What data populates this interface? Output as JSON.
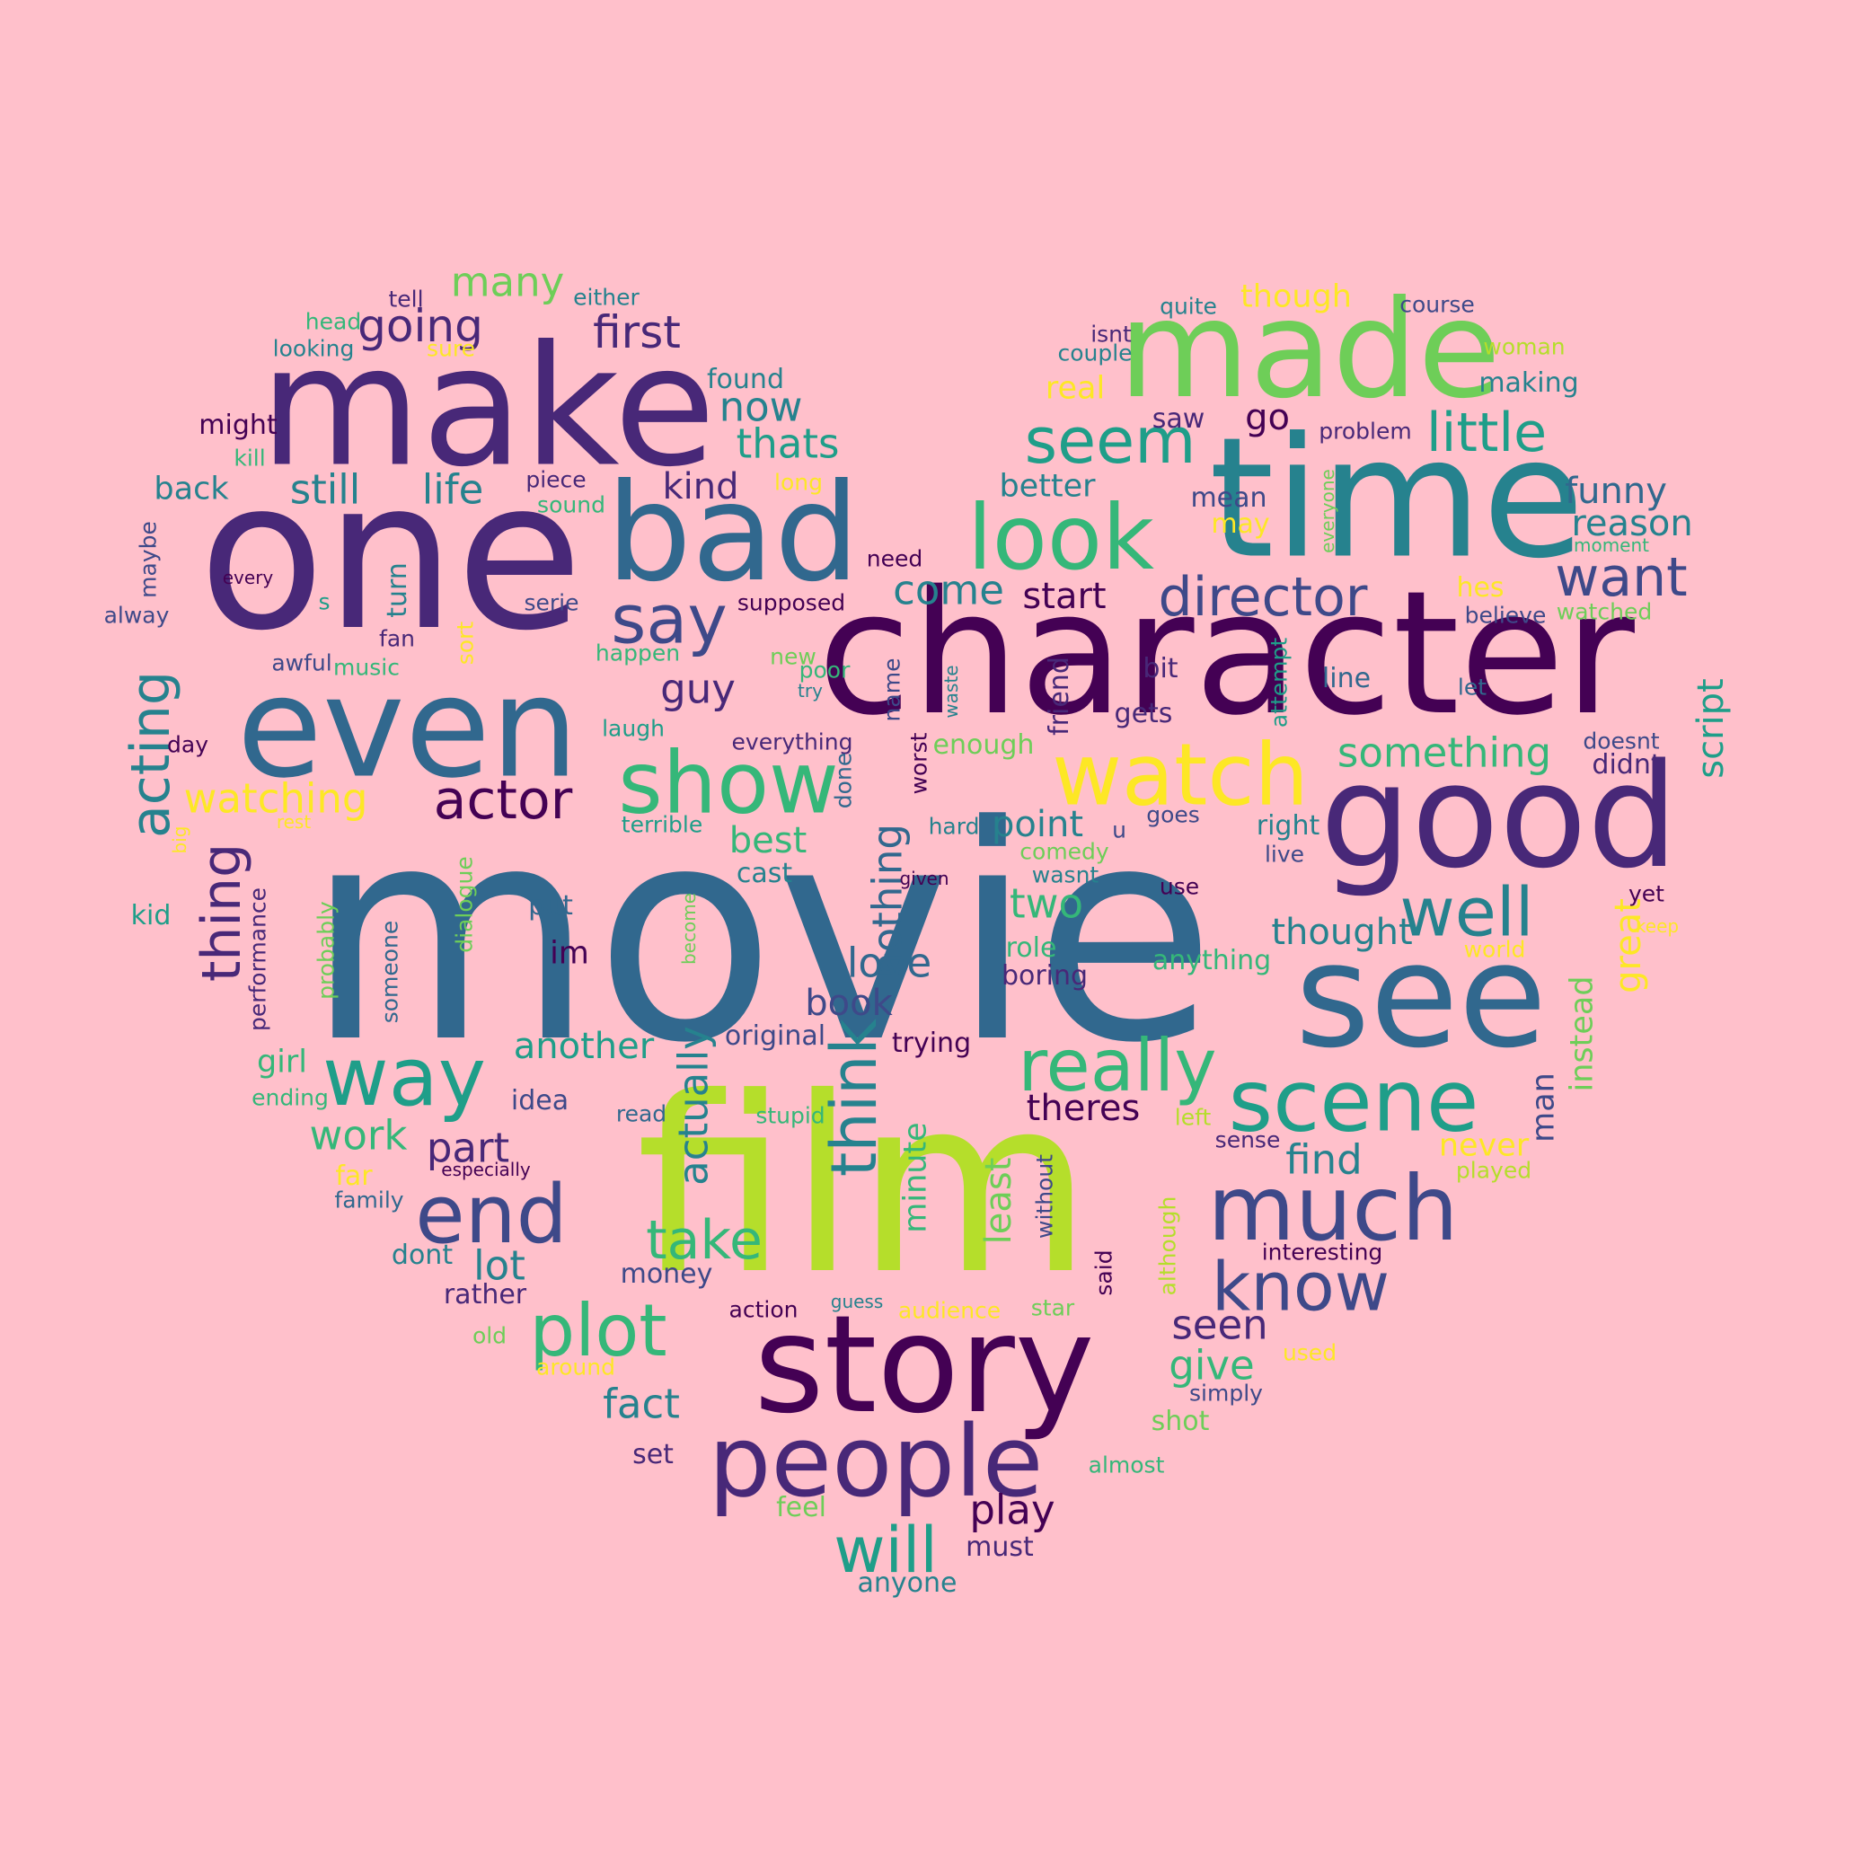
{
  "palette": [
    "#440154",
    "#482878",
    "#3e4989",
    "#31688e",
    "#26828e",
    "#1f9e89",
    "#35b779",
    "#6ece58",
    "#b5de2b",
    "#fde725"
  ],
  "words": [
    "movie",
    "film",
    "one",
    "character",
    "make",
    "time",
    "made",
    "see",
    "good",
    "story",
    "even",
    "bad",
    "people",
    "watch",
    "look",
    "show",
    "scene",
    "much",
    "end",
    "way",
    "really",
    "say",
    "plot",
    "know",
    "director",
    "seem",
    "little",
    "well",
    "think",
    "will",
    "take",
    "actor",
    "acting",
    "thing",
    "want",
    "going",
    "first",
    "many",
    "nothing",
    "lot",
    "work",
    "actually",
    "part",
    "love",
    "something",
    "seen",
    "give",
    "fact",
    "play",
    "script",
    "two",
    "great",
    "instead",
    "least",
    "minute",
    "thats",
    "now",
    "still",
    "life",
    "back",
    "kind",
    "come",
    "start",
    "better",
    "funny",
    "reason",
    "guy",
    "watching",
    "best",
    "point",
    "another",
    "book",
    "thought",
    "anything",
    "girl",
    "theres",
    "find",
    "never",
    "im",
    "idea",
    "go",
    "real",
    "though",
    "found",
    "course",
    "quite",
    "either",
    "tell",
    "head",
    "looking",
    "sure",
    "might",
    "kill",
    "piece",
    "sound",
    "long",
    "mean",
    "may",
    "everyone",
    "moment",
    "hes",
    "watched",
    "believe",
    "problem",
    "making",
    "couple",
    "isnt",
    "woman",
    "saw",
    "need",
    "every",
    "maybe",
    "alway",
    "s",
    "turn",
    "serie",
    "supposed",
    "awful",
    "music",
    "fan",
    "sort",
    "happen",
    "new",
    "poor",
    "try",
    "name",
    "waste",
    "friend",
    "attempt",
    "bit",
    "line",
    "let",
    "doesnt",
    "didnt",
    "day",
    "gets",
    "enough",
    "everything",
    "done",
    "worst",
    "laugh",
    "rest",
    "big",
    "terrible",
    "kid",
    "performance",
    "probably",
    "dialogue",
    "someone",
    "become",
    "put",
    "cast",
    "given",
    "hard",
    "comedy",
    "wasnt",
    "u",
    "goes",
    "right",
    "live",
    "use",
    "yet",
    "keep",
    "world",
    "role",
    "boring",
    "trying",
    "original",
    "ending",
    "read",
    "stupid",
    "left",
    "sense",
    "far",
    "especially",
    "played",
    "family",
    "without",
    "although",
    "said",
    "interesting",
    "dont",
    "money",
    "rather",
    "action",
    "guess",
    "audience",
    "star",
    "old",
    "around",
    "used",
    "simply",
    "shot",
    "set",
    "almost",
    "feel",
    "must",
    "anyone",
    "man"
  ]
}
